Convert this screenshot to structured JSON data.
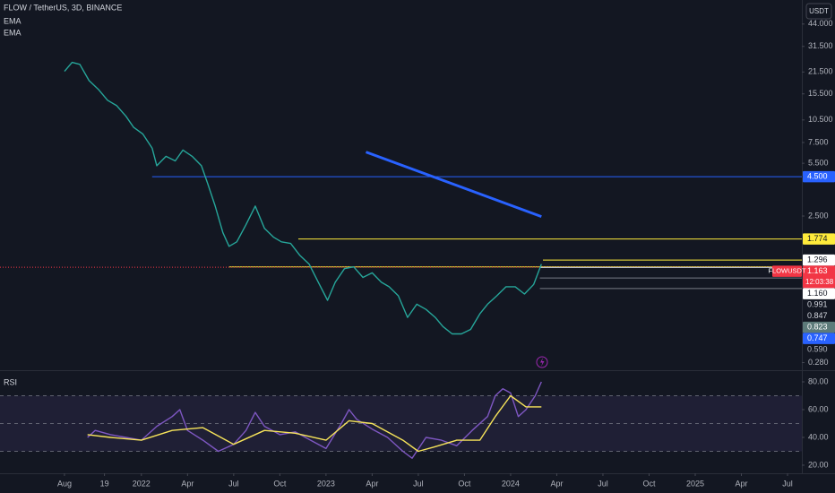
{
  "chart_data": [
    {
      "type": "line",
      "title": "FLOW / TetherUS, 3D, BINANCE",
      "indicators": [
        "EMA",
        "EMA"
      ],
      "unit_button": "USDT",
      "log_scale": true,
      "ylim": [
        0.25,
        63
      ],
      "yticks": [
        {
          "value": 44,
          "label": "44.000"
        },
        {
          "value": 31.5,
          "label": "31.500"
        },
        {
          "value": 21.5,
          "label": "21.500"
        },
        {
          "value": 15.5,
          "label": "15.500"
        },
        {
          "value": 10.5,
          "label": "10.500"
        },
        {
          "value": 7.5,
          "label": "7.500"
        },
        {
          "value": 5.5,
          "label": "5.500"
        },
        {
          "value": 2.5,
          "label": "2.500"
        },
        {
          "value": 0.28,
          "label": "0.280"
        }
      ],
      "xlim": [
        -4.19,
        47.93
      ],
      "xticks": [
        {
          "value": 0,
          "label": "Aug"
        },
        {
          "value": 2.6,
          "label": "19"
        },
        {
          "value": 5,
          "label": "2022"
        },
        {
          "value": 8,
          "label": "Apr"
        },
        {
          "value": 11,
          "label": "Jul"
        },
        {
          "value": 14,
          "label": "Oct"
        },
        {
          "value": 17,
          "label": "2023"
        },
        {
          "value": 20,
          "label": "Apr"
        },
        {
          "value": 23,
          "label": "Jul"
        },
        {
          "value": 26,
          "label": "Oct"
        },
        {
          "value": 29,
          "label": "2024"
        },
        {
          "value": 32,
          "label": "Apr"
        },
        {
          "value": 35,
          "label": "Jul"
        },
        {
          "value": 38,
          "label": "Oct"
        },
        {
          "value": 41,
          "label": "2025"
        },
        {
          "value": 44,
          "label": "Apr"
        },
        {
          "value": 47,
          "label": "Jul"
        }
      ],
      "x": [
        0,
        0.5,
        1.0,
        1.6,
        2.2,
        2.8,
        3.4,
        4.0,
        4.5,
        5.1,
        5.7,
        6.0,
        6.6,
        7.2,
        7.7,
        8.3,
        8.9,
        9.3,
        9.8,
        10.3,
        10.7,
        11.2,
        11.8,
        12.4,
        13.0,
        13.6,
        14.1,
        14.7,
        15.3,
        15.9,
        16.5,
        17.1,
        17.6,
        18.2,
        18.8,
        19.4,
        20.0,
        20.6,
        21.1,
        21.7,
        22.3,
        22.9,
        23.5,
        24.1,
        24.6,
        25.2,
        25.8,
        26.4,
        27.0,
        27.5,
        28.1,
        28.7,
        29.3,
        29.9,
        30.5,
        31.0
      ],
      "series": [
        {
          "color": "#26a69a",
          "values": [
            21.7,
            24.8,
            24.1,
            18.9,
            16.6,
            14.1,
            13.0,
            11.1,
            9.4,
            8.5,
            6.9,
            5.3,
            6.1,
            5.7,
            6.7,
            6.1,
            5.3,
            4.1,
            2.9,
            1.95,
            1.59,
            1.7,
            2.2,
            2.9,
            2.08,
            1.82,
            1.7,
            1.66,
            1.39,
            1.22,
            0.93,
            0.71,
            0.93,
            1.14,
            1.17,
            1.0,
            1.07,
            0.93,
            0.87,
            0.76,
            0.55,
            0.67,
            0.62,
            0.55,
            0.48,
            0.43,
            0.43,
            0.46,
            0.58,
            0.67,
            0.76,
            0.87,
            0.87,
            0.78,
            0.9,
            1.22
          ]
        }
      ],
      "trend_line": {
        "x": [
          19.6,
          31.0
        ],
        "values": [
          6.5,
          2.48
        ],
        "color": "#2962ff"
      },
      "lines": [
        {
          "value": 1.17,
          "from": 10.7,
          "color": "#ffeb3b"
        }
      ],
      "price_labels": [
        {
          "value": 4.5,
          "label": "4.500",
          "bg": "#2962ff",
          "fg": "#ffffff",
          "line_from": 5.7,
          "line_color": "#2962ff"
        },
        {
          "value": 1.774,
          "label": "1.774",
          "bg": "#ffeb3b",
          "fg": "#131722",
          "line_from": 15.2,
          "line_color": "#ffeb3b"
        },
        {
          "value": 1.296,
          "label": "1.296",
          "bg": "#ffffff",
          "fg": "#131722",
          "line_from": 31.1,
          "line_color": "#ffeb3b"
        },
        {
          "value": 1.163,
          "label": "1.163",
          "bg": "#f23645",
          "fg": "#ffffff",
          "name": "FLOWUSDT",
          "countdown": "12:03:38",
          "line_from": -4.19,
          "line_color": "#f23645"
        },
        {
          "value": 1.16,
          "label": "1.160",
          "bg": "#ffffff",
          "fg": "#131722",
          "line_from": 30.9,
          "line_color": "#d1d4dc"
        },
        {
          "value": 0.991,
          "label": "0.991",
          "fg": "#d1d4dc",
          "line_from": 30.9,
          "line_color": "#787b86"
        },
        {
          "value": 0.847,
          "label": "0.847",
          "fg": "#d1d4dc",
          "line_from": 30.9,
          "line_color": "#787b86"
        },
        {
          "value": 0.823,
          "label": "0.823",
          "bg": "#5d7b7a",
          "fg": "#ffffff"
        },
        {
          "value": 0.747,
          "label": "0.747",
          "bg": "#2962ff",
          "fg": "#ffffff"
        },
        {
          "value": 0.59,
          "label": "0.590",
          "fg": "#b2b5be"
        }
      ]
    },
    {
      "type": "line",
      "title": "RSI",
      "ylim": [
        16.1,
        87.1
      ],
      "yticks": [
        {
          "value": 80,
          "label": "80.00"
        },
        {
          "value": 60,
          "label": "60.00"
        },
        {
          "value": 40,
          "label": "40.00"
        },
        {
          "value": 20,
          "label": "20.00"
        }
      ],
      "band": [
        30,
        70
      ],
      "levels": [
        70,
        50,
        30
      ],
      "series": [
        {
          "color": "#7e57c2",
          "x": [
            1.5,
            2,
            3,
            4,
            5,
            6,
            7,
            7.5,
            8,
            9,
            10,
            11,
            11.8,
            12.4,
            13,
            14,
            15,
            16,
            17,
            18,
            18.5,
            19,
            20,
            21,
            22,
            22.6,
            23.5,
            24.5,
            25.5,
            26.5,
            27.5,
            28,
            28.5,
            29,
            29.5,
            30,
            30.6,
            31
          ],
          "values": [
            40,
            45,
            42,
            40,
            38,
            48,
            55,
            60,
            45,
            38,
            30,
            35,
            45,
            58,
            48,
            42,
            44,
            38,
            32,
            50,
            60,
            53,
            46,
            40,
            30,
            25,
            40,
            38,
            34,
            45,
            55,
            70,
            75,
            72,
            55,
            60,
            70,
            80
          ]
        },
        {
          "color": "#f7e45a",
          "x": [
            1.5,
            3,
            5,
            7,
            9,
            11,
            13,
            15,
            17,
            18.5,
            20,
            22,
            23,
            24,
            25.5,
            27,
            28,
            29,
            30,
            31
          ],
          "values": [
            42,
            40,
            38,
            45,
            47,
            35,
            45,
            43,
            38,
            52,
            50,
            38,
            30,
            33,
            38,
            38,
            55,
            70,
            62,
            62
          ]
        }
      ]
    }
  ]
}
